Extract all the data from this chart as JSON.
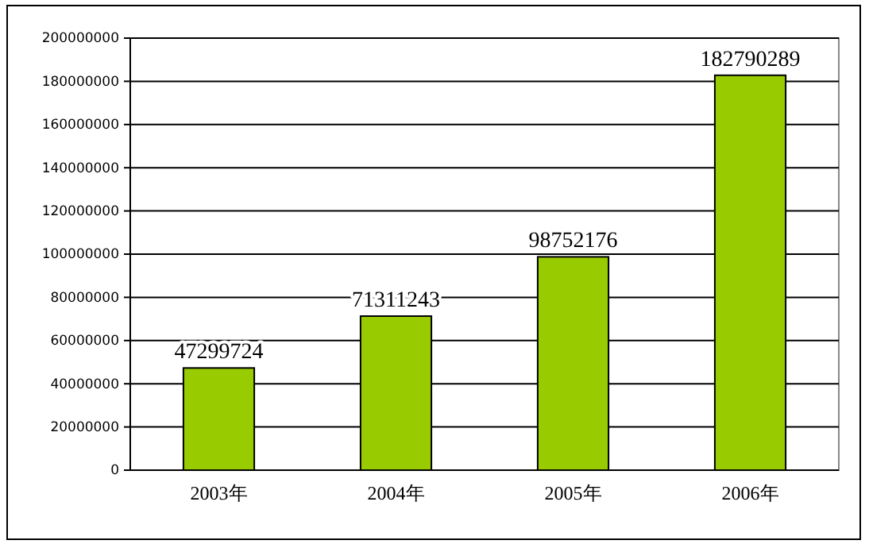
{
  "chart_data": {
    "type": "bar",
    "categories": [
      "2003年",
      "2004年",
      "2005年",
      "2006年"
    ],
    "values": [
      47299724,
      71311243,
      98752176,
      182790289
    ],
    "color": "#99cc00",
    "ylim": [
      0,
      200000000
    ],
    "yticks": [
      0,
      20000000,
      40000000,
      60000000,
      80000000,
      100000000,
      120000000,
      140000000,
      160000000,
      180000000,
      200000000
    ],
    "grid": "y",
    "data_labels": true
  }
}
